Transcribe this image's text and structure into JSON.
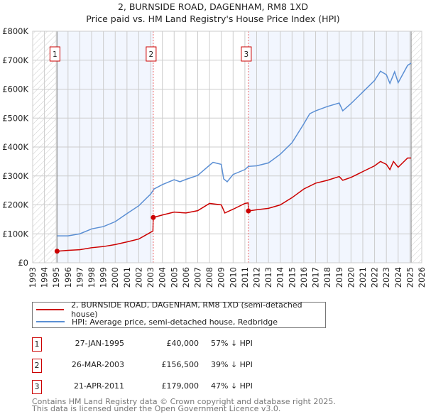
{
  "chart_data": {
    "type": "line",
    "title": "2, BURNSIDE ROAD, DAGENHAM, RM8 1XD",
    "subtitle": "Price paid vs. HM Land Registry's House Price Index (HPI)",
    "xlim": [
      1993,
      2026
    ],
    "ylim": [
      0,
      800000
    ],
    "x_ticks": [
      "1993",
      "1994",
      "1995",
      "1996",
      "1997",
      "1998",
      "1999",
      "2000",
      "2001",
      "2002",
      "2003",
      "2004",
      "2005",
      "2006",
      "2007",
      "2008",
      "2009",
      "2010",
      "2011",
      "2012",
      "2013",
      "2014",
      "2015",
      "2016",
      "2017",
      "2018",
      "2019",
      "2020",
      "2021",
      "2022",
      "2023",
      "2024",
      "2025",
      "2026"
    ],
    "y_ticks": [
      {
        "v": 0,
        "label": "£0"
      },
      {
        "v": 100000,
        "label": "£100K"
      },
      {
        "v": 200000,
        "label": "£200K"
      },
      {
        "v": 300000,
        "label": "£300K"
      },
      {
        "v": 400000,
        "label": "£400K"
      },
      {
        "v": 500000,
        "label": "£500K"
      },
      {
        "v": 600000,
        "label": "£600K"
      },
      {
        "v": 700000,
        "label": "£700K"
      },
      {
        "v": 800000,
        "label": "£800K"
      }
    ],
    "grid": true,
    "data_range": [
      1995.07,
      2025.1
    ],
    "series": [
      {
        "name": "2, BURNSIDE ROAD, DAGENHAM, RM8 1XD (semi-detached house)",
        "color": "#cc0000",
        "points": [
          [
            1995.07,
            40000
          ],
          [
            1996,
            43000
          ],
          [
            1997,
            45000
          ],
          [
            1998,
            52000
          ],
          [
            1999,
            56000
          ],
          [
            2000,
            63000
          ],
          [
            2001,
            72000
          ],
          [
            2002,
            82000
          ],
          [
            2003,
            105000
          ],
          [
            2003.2,
            110000
          ],
          [
            2003.23,
            156500
          ],
          [
            2004,
            165000
          ],
          [
            2005,
            175000
          ],
          [
            2006,
            172000
          ],
          [
            2007,
            180000
          ],
          [
            2008,
            205000
          ],
          [
            2009,
            200000
          ],
          [
            2009.3,
            172000
          ],
          [
            2010,
            185000
          ],
          [
            2011,
            205000
          ],
          [
            2011.28,
            207000
          ],
          [
            2011.3,
            179000
          ],
          [
            2012,
            183000
          ],
          [
            2013,
            188000
          ],
          [
            2014,
            200000
          ],
          [
            2015,
            225000
          ],
          [
            2016,
            255000
          ],
          [
            2017,
            275000
          ],
          [
            2018,
            285000
          ],
          [
            2019,
            298000
          ],
          [
            2019.3,
            285000
          ],
          [
            2020,
            295000
          ],
          [
            2021,
            315000
          ],
          [
            2022,
            335000
          ],
          [
            2022.5,
            350000
          ],
          [
            2023,
            340000
          ],
          [
            2023.3,
            322000
          ],
          [
            2023.6,
            350000
          ],
          [
            2024,
            330000
          ],
          [
            2024.8,
            362000
          ],
          [
            2025.1,
            362000
          ]
        ]
      },
      {
        "name": "HPI: Average price, semi-detached house, Redbridge",
        "color": "#5b8fd4",
        "points": [
          [
            1995.07,
            93000
          ],
          [
            1996,
            93000
          ],
          [
            1997,
            100000
          ],
          [
            1998,
            117000
          ],
          [
            1999,
            125000
          ],
          [
            2000,
            142000
          ],
          [
            2001,
            170000
          ],
          [
            2002,
            197000
          ],
          [
            2003,
            237000
          ],
          [
            2003.3,
            255000
          ],
          [
            2004,
            270000
          ],
          [
            2005,
            287000
          ],
          [
            2005.5,
            280000
          ],
          [
            2006,
            288000
          ],
          [
            2007,
            302000
          ],
          [
            2008,
            337000
          ],
          [
            2008.3,
            347000
          ],
          [
            2009,
            340000
          ],
          [
            2009.2,
            290000
          ],
          [
            2009.5,
            280000
          ],
          [
            2010,
            305000
          ],
          [
            2011,
            322000
          ],
          [
            2011.3,
            333000
          ],
          [
            2012,
            335000
          ],
          [
            2013,
            345000
          ],
          [
            2014,
            375000
          ],
          [
            2015,
            415000
          ],
          [
            2016,
            480000
          ],
          [
            2016.5,
            515000
          ],
          [
            2017,
            525000
          ],
          [
            2018,
            540000
          ],
          [
            2019,
            552000
          ],
          [
            2019.3,
            525000
          ],
          [
            2020,
            550000
          ],
          [
            2021,
            590000
          ],
          [
            2022,
            630000
          ],
          [
            2022.5,
            662000
          ],
          [
            2023,
            650000
          ],
          [
            2023.3,
            620000
          ],
          [
            2023.7,
            660000
          ],
          [
            2024,
            622000
          ],
          [
            2024.8,
            682000
          ],
          [
            2025.1,
            690000
          ]
        ]
      }
    ],
    "sales": [
      {
        "id": "1",
        "x": 1995.07,
        "price": 40000,
        "date": "27-JAN-1995",
        "price_label": "£40,000",
        "hpi_label": "57% ↓ HPI"
      },
      {
        "id": "2",
        "x": 2003.23,
        "price": 156500,
        "date": "26-MAR-2003",
        "price_label": "£156,500",
        "hpi_label": "39% ↓ HPI"
      },
      {
        "id": "3",
        "x": 2011.3,
        "price": 179000,
        "date": "21-APR-2011",
        "price_label": "£179,000",
        "hpi_label": "47% ↓ HPI"
      }
    ]
  },
  "footer": {
    "line1": "Contains HM Land Registry data © Crown copyright and database right 2025.",
    "line2": "This data is licensed under the Open Government Licence v3.0."
  }
}
